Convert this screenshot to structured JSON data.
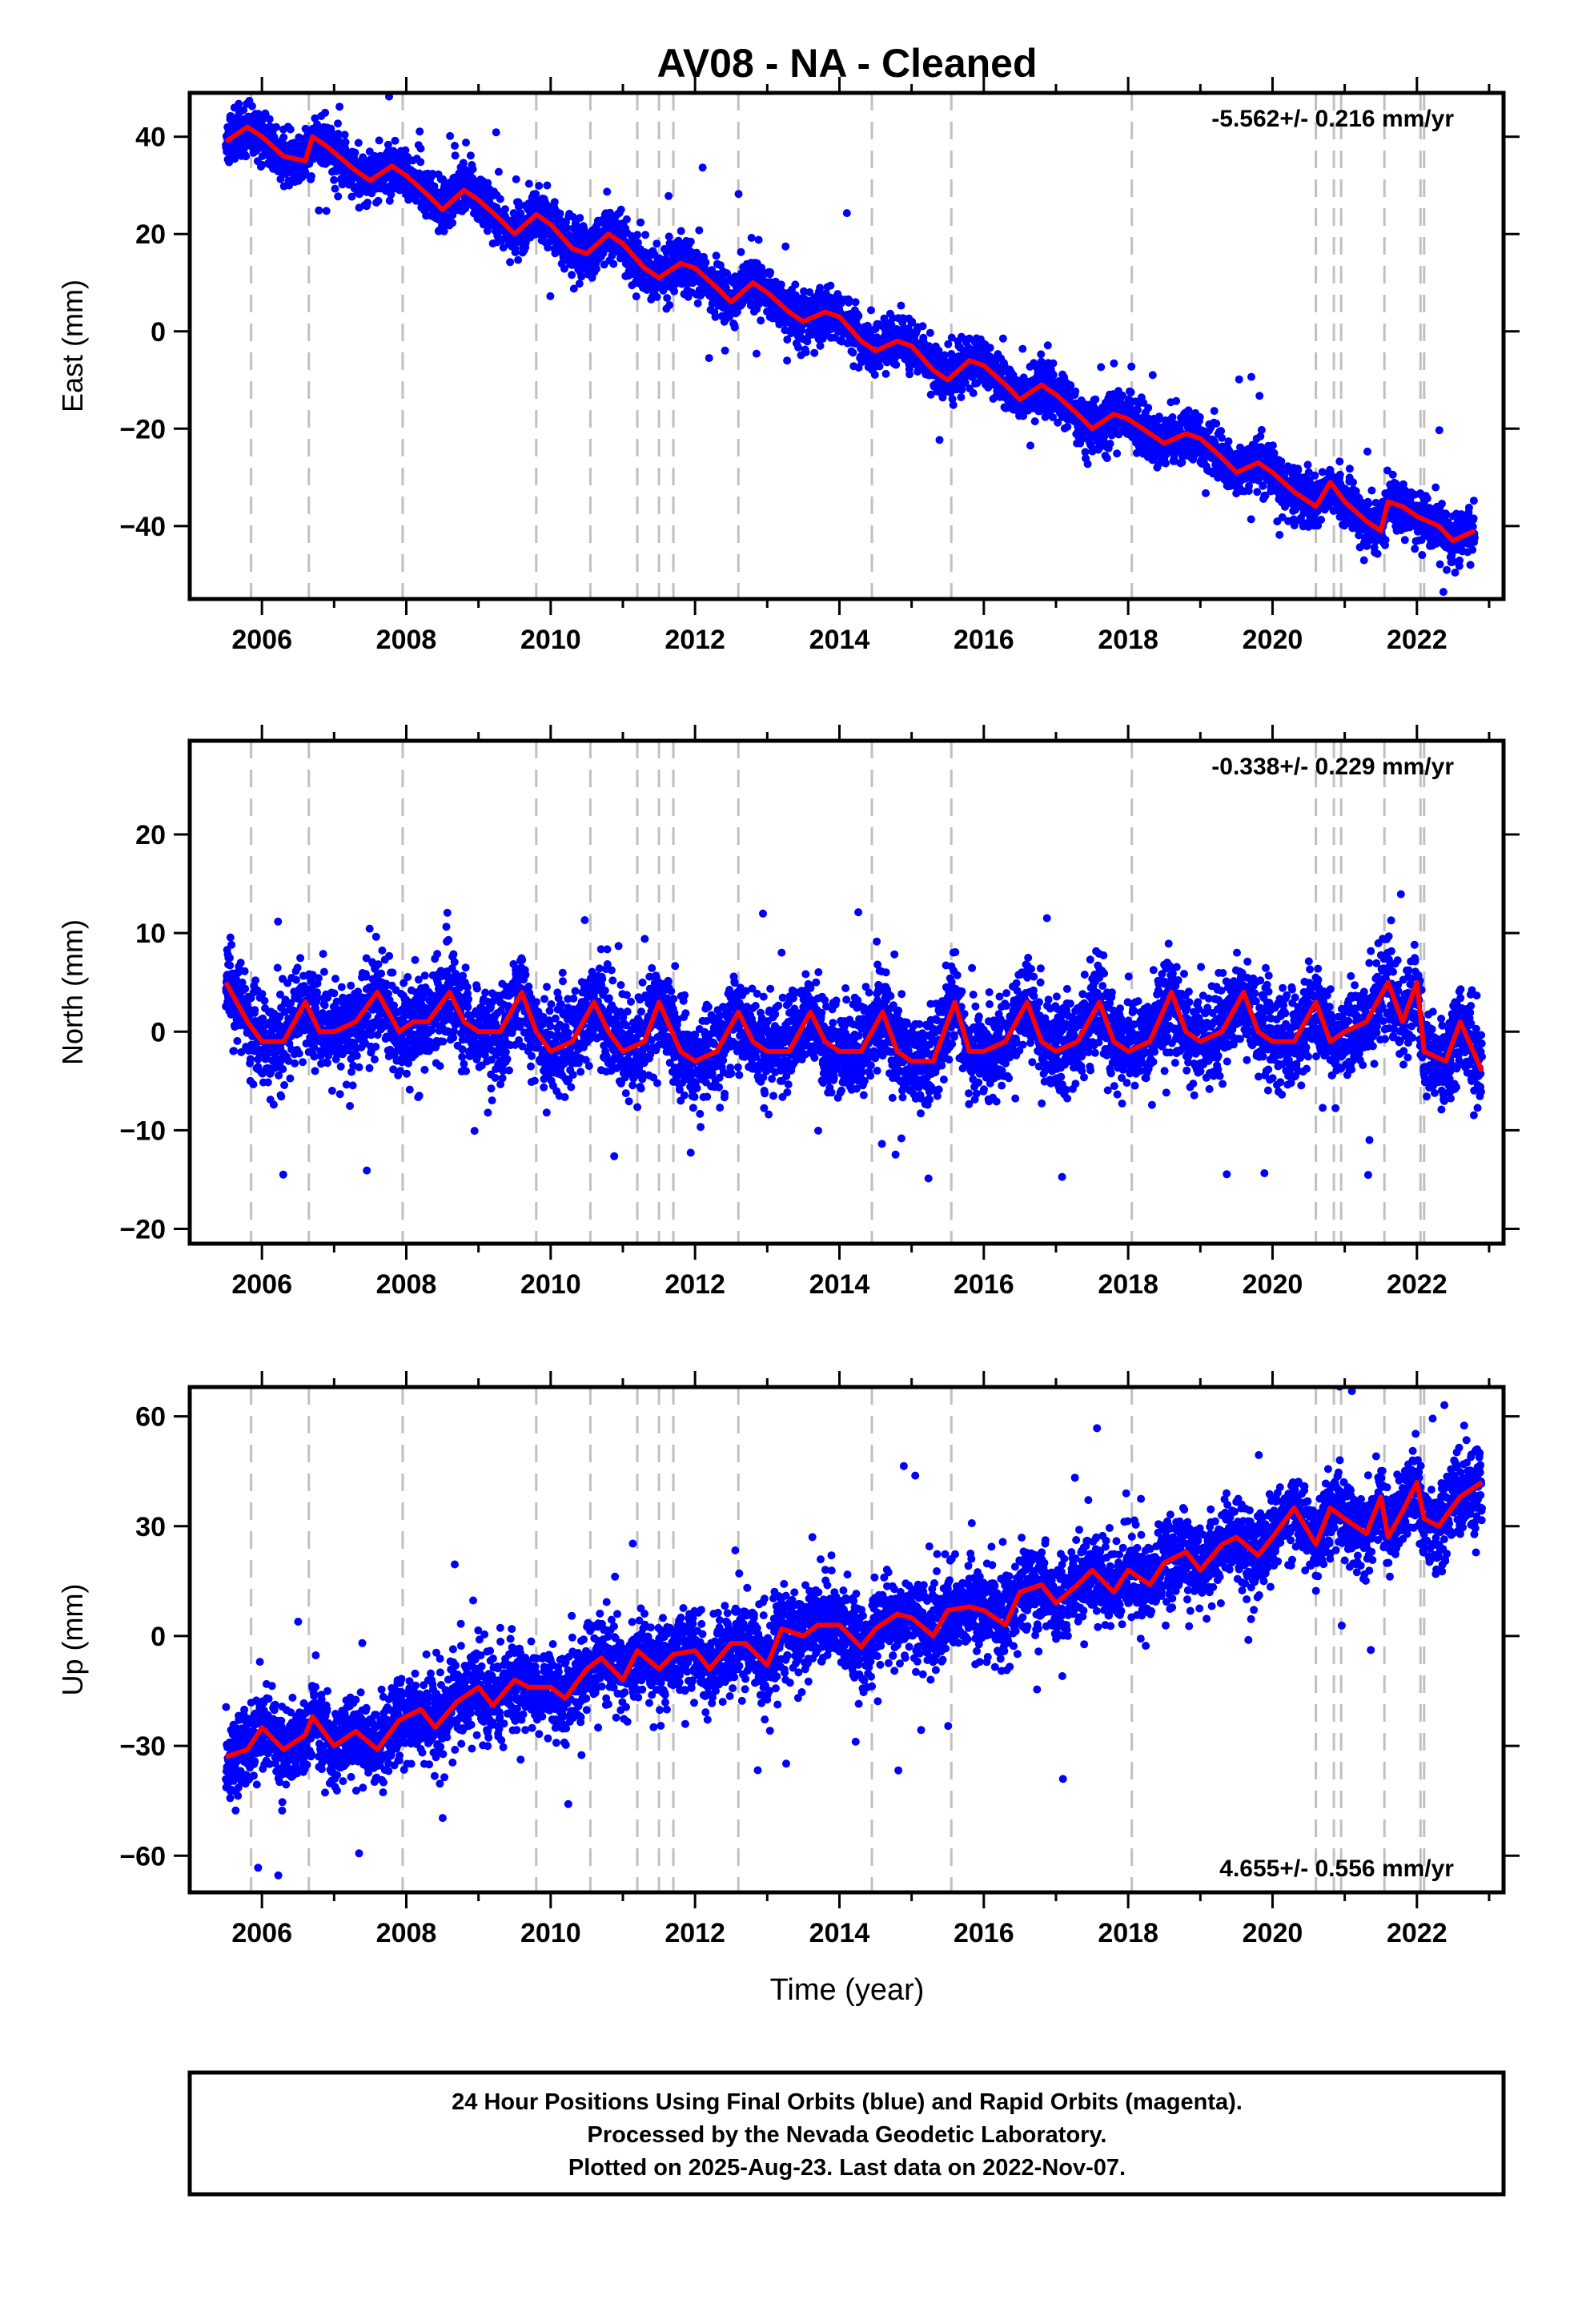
{
  "title": "AV08  - NA - Cleaned",
  "xlabel": "Time (year)",
  "caption": [
    "24 Hour Positions Using Final Orbits (blue) and Rapid Orbits (magenta).",
    "Processed by the Nevada Geodetic Laboratory.",
    "Plotted on 2025-Aug-23. Last data on 2022-Nov-07."
  ],
  "colors": {
    "points": "#0000ff",
    "fit": "#ff0000",
    "events": "#c0c0c0"
  },
  "chart_data": [
    {
      "type": "scatter",
      "ylabel": "East (mm)",
      "rate_text": "-5.562+/- 0.216 mm/yr",
      "rate_position": "top-right",
      "xlim": [
        2005.0,
        2023.2
      ],
      "ylim": [
        -55,
        49
      ],
      "x_ticks": [
        2006,
        2008,
        2010,
        2012,
        2014,
        2016,
        2018,
        2020,
        2022
      ],
      "y_ticks": [
        40,
        20,
        0,
        -20,
        -40
      ],
      "event_lines": [
        2005.85,
        2006.65,
        2007.95,
        2009.8,
        2010.55,
        2011.2,
        2011.5,
        2011.7,
        2012.6,
        2014.45,
        2015.55,
        2018.05,
        2020.6,
        2020.85,
        2020.95,
        2021.55,
        2022.05,
        2022.1
      ],
      "fit": {
        "x": [
          2005.5,
          2005.8,
          2006.0,
          2006.3,
          2006.6,
          2006.7,
          2006.9,
          2007.3,
          2007.5,
          2007.8,
          2008.0,
          2008.3,
          2008.5,
          2008.8,
          2009.0,
          2009.3,
          2009.5,
          2009.8,
          2010.0,
          2010.3,
          2010.5,
          2010.8,
          2011.0,
          2011.3,
          2011.5,
          2011.8,
          2012.0,
          2012.3,
          2012.5,
          2012.8,
          2013.0,
          2013.3,
          2013.5,
          2013.8,
          2014.0,
          2014.3,
          2014.5,
          2014.8,
          2015.0,
          2015.3,
          2015.5,
          2015.8,
          2016.0,
          2016.3,
          2016.5,
          2016.8,
          2017.0,
          2017.3,
          2017.5,
          2017.8,
          2018.0,
          2018.3,
          2018.5,
          2018.8,
          2019.0,
          2019.3,
          2019.5,
          2019.8,
          2020.0,
          2020.3,
          2020.6,
          2020.8,
          2021.0,
          2021.3,
          2021.5,
          2021.6,
          2021.8,
          2022.0,
          2022.3,
          2022.5,
          2022.8
        ],
        "y": [
          39,
          42,
          40,
          36,
          35,
          40,
          38,
          33,
          31,
          34,
          32,
          28,
          25,
          29,
          27,
          23,
          20,
          24,
          22,
          17,
          16,
          20,
          18,
          13,
          11,
          14,
          13,
          9,
          6,
          10,
          8,
          4,
          2,
          4,
          3,
          -2,
          -4,
          -2,
          -3,
          -8,
          -10,
          -6,
          -7,
          -11,
          -14,
          -11,
          -13,
          -17,
          -20,
          -17,
          -18,
          -21,
          -23,
          -21,
          -22,
          -26,
          -29,
          -27,
          -29,
          -33,
          -36,
          -31,
          -35,
          -39,
          -41,
          -35,
          -36,
          -38,
          -40,
          -43,
          -41
        ]
      },
      "n_points": 5800,
      "scatter_sigma": 2.5,
      "seed": 11
    },
    {
      "type": "scatter",
      "ylabel": "North (mm)",
      "rate_text": "-0.338+/- 0.229 mm/yr",
      "rate_position": "top-right",
      "xlim": [
        2005.0,
        2023.2
      ],
      "ylim": [
        -21.5,
        29.5
      ],
      "x_ticks": [
        2006,
        2008,
        2010,
        2012,
        2014,
        2016,
        2018,
        2020,
        2022
      ],
      "y_ticks": [
        20,
        10,
        0,
        -10,
        -20
      ],
      "event_lines": [
        2005.85,
        2006.65,
        2007.95,
        2009.8,
        2010.55,
        2011.2,
        2011.5,
        2011.7,
        2012.6,
        2014.45,
        2015.55,
        2018.05,
        2020.6,
        2020.85,
        2020.95,
        2021.55,
        2022.05,
        2022.1
      ],
      "fit": {
        "x": [
          2005.5,
          2005.8,
          2006.0,
          2006.3,
          2006.6,
          2006.8,
          2007.0,
          2007.3,
          2007.6,
          2007.9,
          2008.1,
          2008.3,
          2008.6,
          2008.8,
          2009.0,
          2009.3,
          2009.6,
          2009.8,
          2010.0,
          2010.3,
          2010.6,
          2010.8,
          2011.0,
          2011.3,
          2011.5,
          2011.8,
          2012.0,
          2012.3,
          2012.6,
          2012.8,
          2013.0,
          2013.3,
          2013.6,
          2013.8,
          2014.0,
          2014.3,
          2014.6,
          2014.8,
          2015.0,
          2015.3,
          2015.6,
          2015.8,
          2016.0,
          2016.3,
          2016.6,
          2016.8,
          2017.0,
          2017.3,
          2017.6,
          2017.8,
          2018.0,
          2018.3,
          2018.6,
          2018.8,
          2019.0,
          2019.3,
          2019.6,
          2019.8,
          2020.0,
          2020.3,
          2020.6,
          2020.8,
          2021.0,
          2021.3,
          2021.6,
          2021.8,
          2022.0,
          2022.1,
          2022.4,
          2022.6,
          2022.9
        ],
        "y": [
          5,
          1,
          -1,
          -1,
          3,
          0,
          0,
          1,
          4,
          0,
          1,
          1,
          4,
          1,
          0,
          0,
          4,
          0,
          -2,
          -1,
          3,
          0,
          -2,
          -1,
          3,
          -2,
          -3,
          -2,
          2,
          -1,
          -2,
          -2,
          2,
          -1,
          -2,
          -2,
          2,
          -2,
          -3,
          -3,
          3,
          -2,
          -2,
          -1,
          3,
          -1,
          -2,
          -1,
          3,
          -1,
          -2,
          -1,
          4,
          0,
          -1,
          0,
          4,
          0,
          -1,
          -1,
          3,
          -1,
          0,
          1,
          5,
          1,
          5,
          -2,
          -3,
          1,
          -4
        ]
      },
      "n_points": 5800,
      "scatter_sigma": 2.2,
      "seed": 23
    },
    {
      "type": "scatter",
      "ylabel": "Up (mm)",
      "rate_text": "4.655+/- 0.556 mm/yr",
      "rate_position": "bottom-right",
      "xlim": [
        2005.0,
        2023.2
      ],
      "ylim": [
        -70,
        68
      ],
      "x_ticks": [
        2006,
        2008,
        2010,
        2012,
        2014,
        2016,
        2018,
        2020,
        2022
      ],
      "y_ticks": [
        60,
        30,
        0,
        -30,
        -60
      ],
      "event_lines": [
        2005.85,
        2006.65,
        2007.95,
        2009.8,
        2010.55,
        2011.2,
        2011.5,
        2011.7,
        2012.6,
        2014.45,
        2015.55,
        2018.05,
        2020.6,
        2020.85,
        2020.95,
        2021.55,
        2022.05,
        2022.1
      ],
      "fit": {
        "x": [
          2005.5,
          2005.8,
          2006.0,
          2006.3,
          2006.6,
          2006.7,
          2007.0,
          2007.3,
          2007.6,
          2007.9,
          2008.2,
          2008.4,
          2008.7,
          2009.0,
          2009.2,
          2009.5,
          2009.7,
          2010.0,
          2010.2,
          2010.5,
          2010.7,
          2011.0,
          2011.2,
          2011.5,
          2011.7,
          2012.0,
          2012.2,
          2012.5,
          2012.7,
          2013.0,
          2013.2,
          2013.5,
          2013.7,
          2014.0,
          2014.3,
          2014.5,
          2014.8,
          2015.0,
          2015.3,
          2015.5,
          2015.8,
          2016.0,
          2016.3,
          2016.5,
          2016.8,
          2017.0,
          2017.3,
          2017.5,
          2017.8,
          2018.0,
          2018.3,
          2018.5,
          2018.8,
          2019.0,
          2019.3,
          2019.5,
          2019.8,
          2020.0,
          2020.3,
          2020.6,
          2020.8,
          2021.0,
          2021.3,
          2021.5,
          2021.6,
          2021.8,
          2022.0,
          2022.1,
          2022.3,
          2022.6,
          2022.9
        ],
        "y": [
          -33,
          -31,
          -25,
          -31,
          -27,
          -22,
          -30,
          -26,
          -31,
          -23,
          -20,
          -25,
          -18,
          -14,
          -19,
          -12,
          -14,
          -14,
          -17,
          -9,
          -6,
          -12,
          -4,
          -9,
          -5,
          -4,
          -9,
          -2,
          -2,
          -8,
          2,
          0,
          3,
          3,
          -3,
          2,
          6,
          5,
          0,
          7,
          8,
          7,
          3,
          12,
          14,
          9,
          14,
          18,
          12,
          18,
          14,
          20,
          23,
          18,
          25,
          27,
          22,
          27,
          35,
          25,
          35,
          32,
          28,
          38,
          27,
          34,
          42,
          32,
          30,
          38,
          42
        ]
      },
      "n_points": 5800,
      "scatter_sigma": 5.5,
      "seed": 37
    }
  ]
}
